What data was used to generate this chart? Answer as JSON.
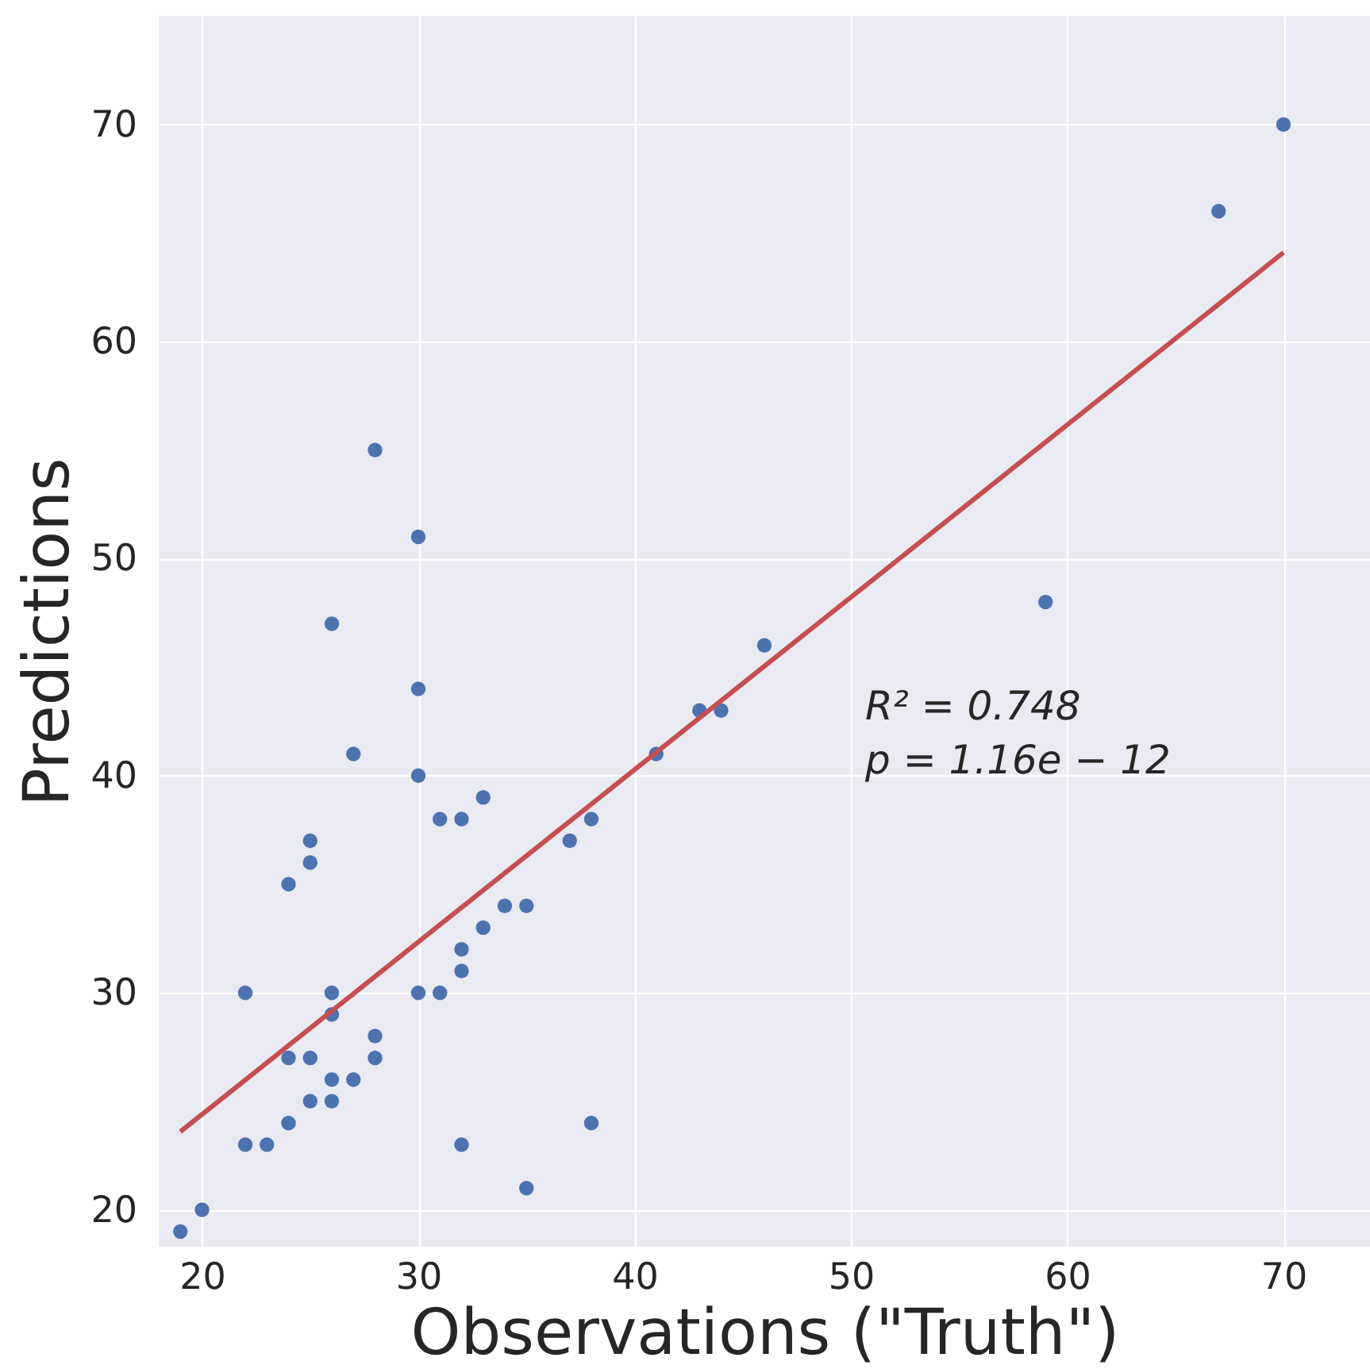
{
  "chart_data": {
    "type": "scatter",
    "xlabel": "Observations (\"Truth\")",
    "ylabel": "Predictions",
    "annotations": [
      "R² = 0.748",
      "p = 1.16e − 12"
    ],
    "xlim": [
      18,
      74
    ],
    "ylim": [
      18.3,
      75
    ],
    "xticks": [
      20,
      30,
      40,
      50,
      60,
      70
    ],
    "yticks": [
      20,
      30,
      40,
      50,
      60,
      70
    ],
    "grid": true,
    "series": [
      {
        "color": "#4c72b0",
        "marker": "circle",
        "x": [
          19,
          20,
          22,
          22,
          23,
          24,
          24,
          24,
          25,
          25,
          25,
          25,
          26,
          26,
          26,
          26,
          26,
          27,
          27,
          28,
          28,
          28,
          30,
          30,
          30,
          30,
          31,
          31,
          32,
          32,
          32,
          32,
          33,
          33,
          34,
          35,
          35,
          37,
          38,
          38,
          41,
          43,
          44,
          46,
          59,
          67,
          70
        ],
        "values": [
          19,
          20,
          23,
          30,
          23,
          24,
          27,
          35,
          25,
          27,
          36,
          37,
          25,
          26,
          29,
          30,
          47,
          26,
          41,
          27,
          28,
          55,
          30,
          40,
          44,
          51,
          30,
          38,
          23,
          31,
          32,
          38,
          33,
          39,
          34,
          34,
          21,
          37,
          38,
          24,
          41,
          43,
          43,
          46,
          48,
          66,
          70
        ]
      },
      {
        "type": "line",
        "color": "#c44e52",
        "x": [
          19,
          70
        ],
        "values": [
          23.6,
          64.1
        ]
      }
    ]
  }
}
